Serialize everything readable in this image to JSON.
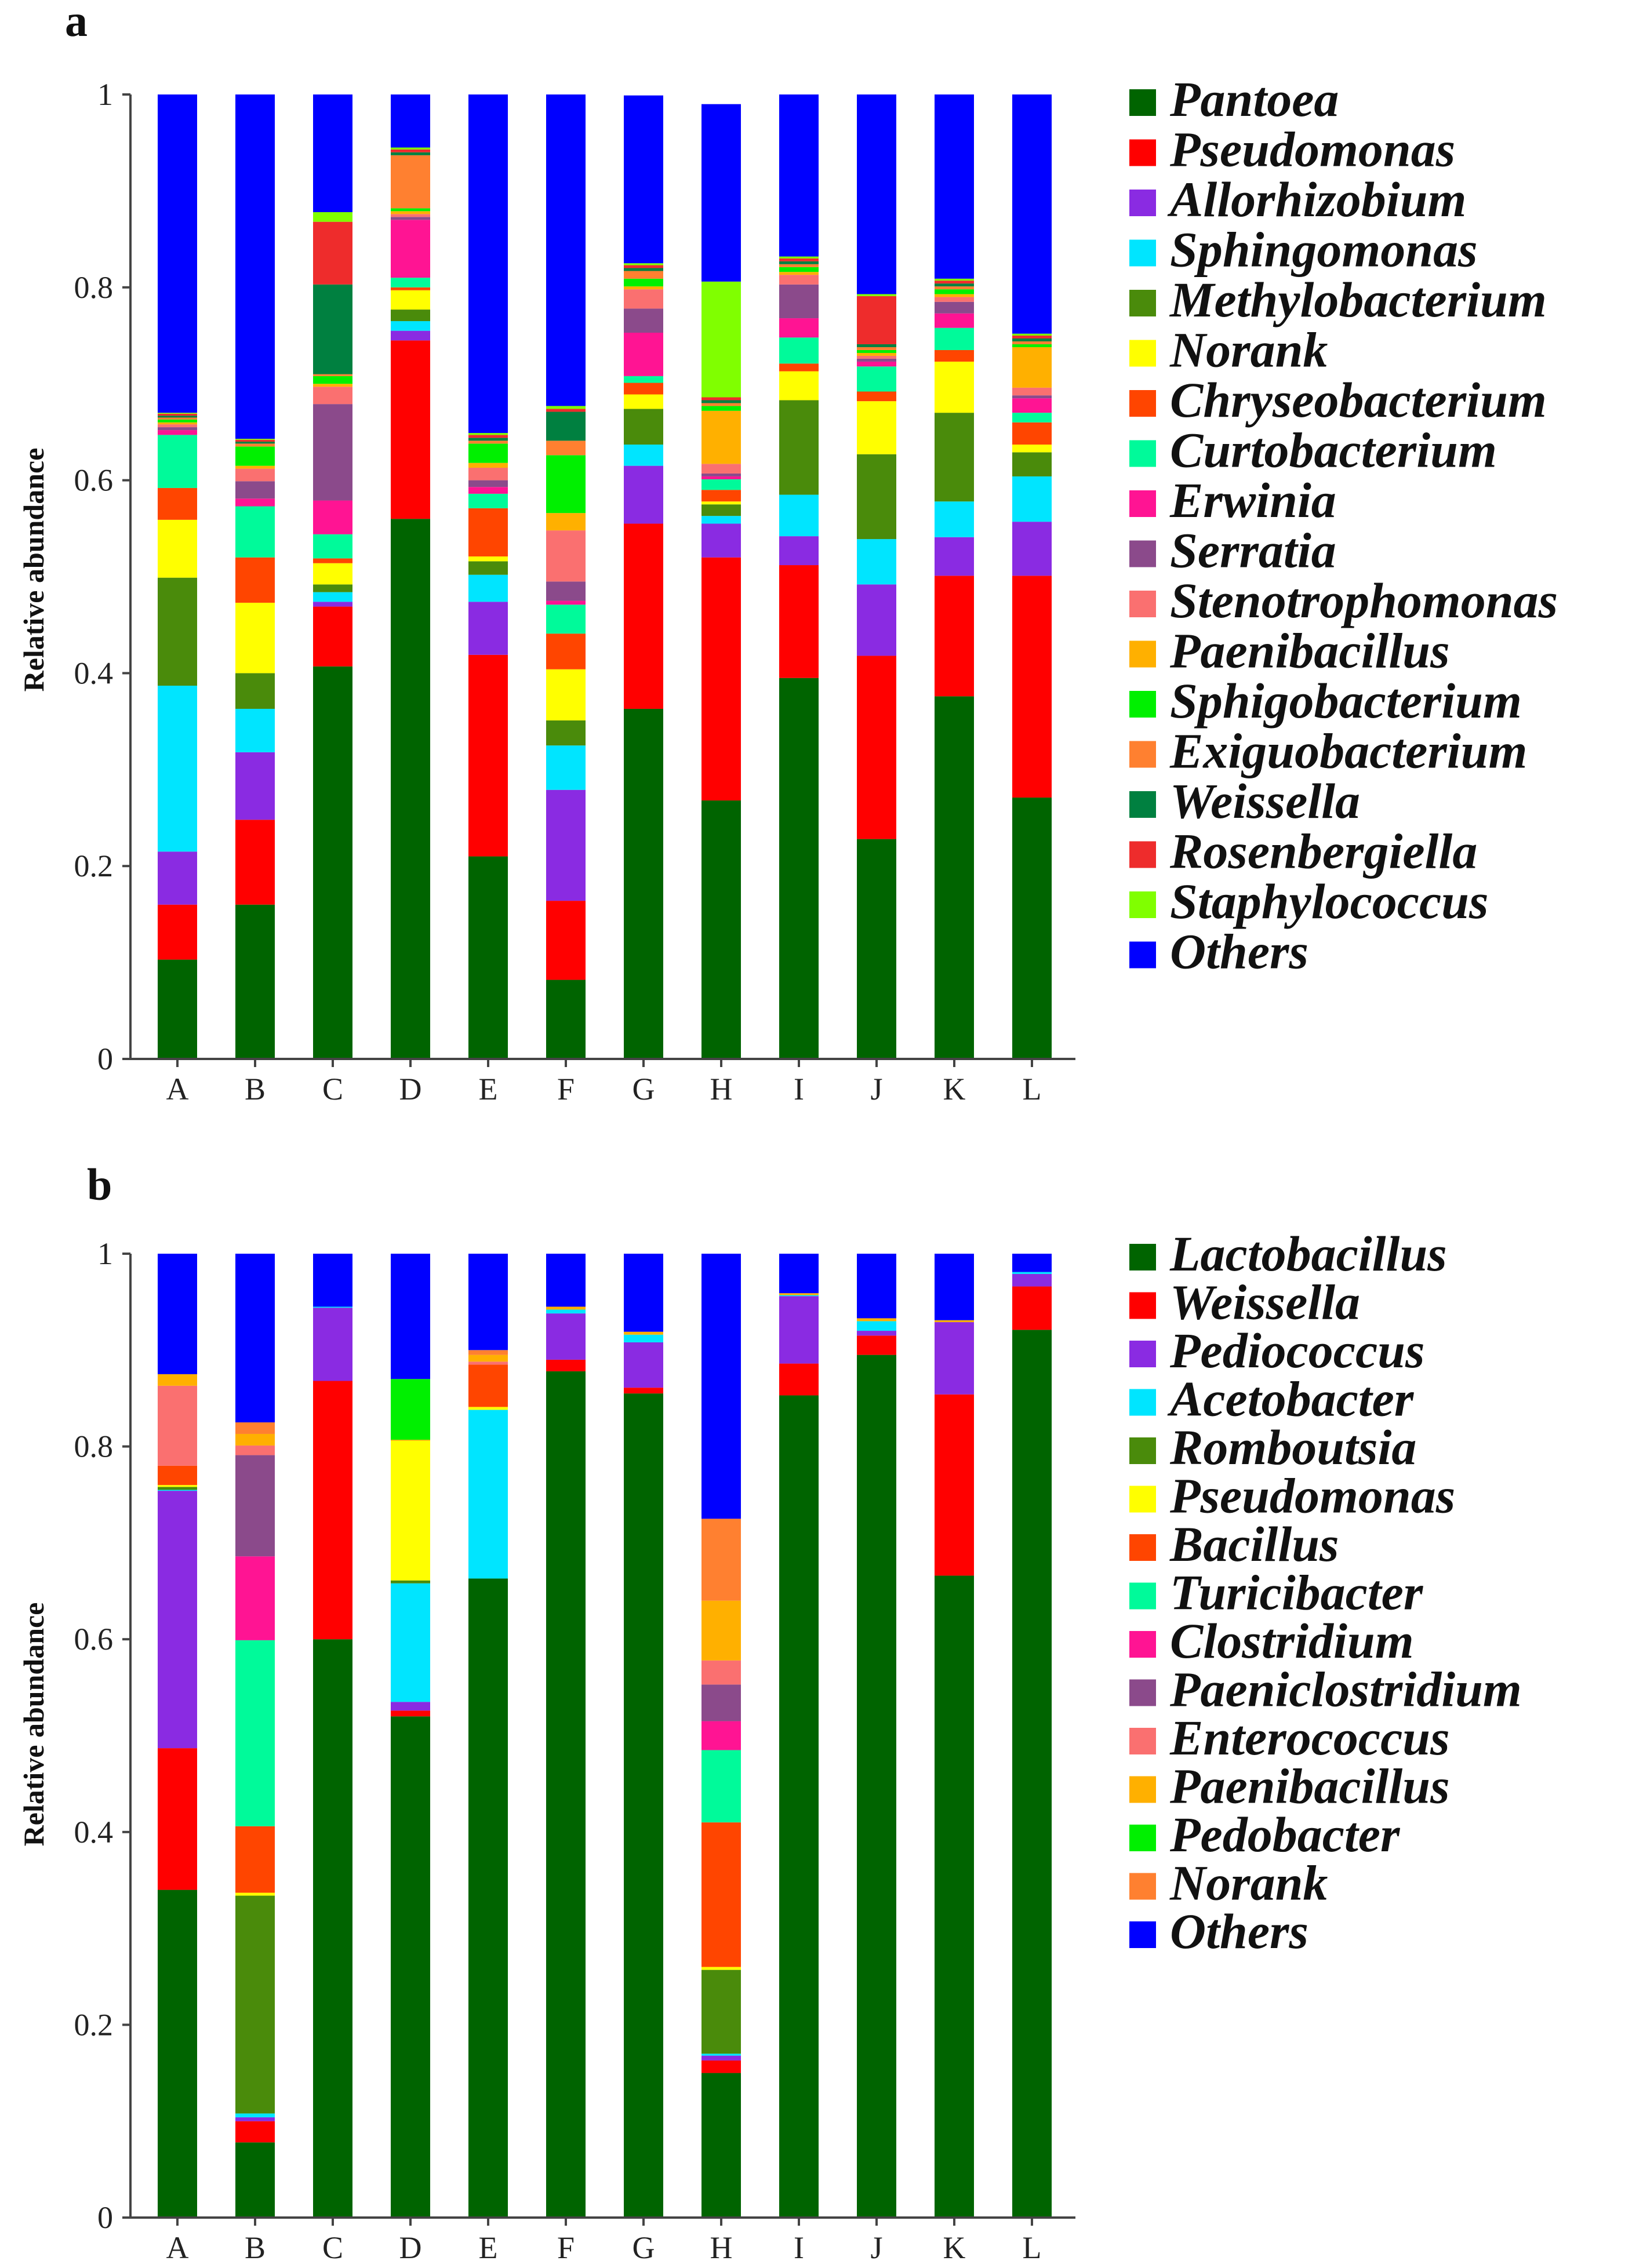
{
  "colors": {
    "Pantoea": "#006400",
    "Pseudomonas_a": "#FF0000",
    "Allorhizobium": "#8A2BE2",
    "Sphingomonas": "#00E5FF",
    "Methylobacterium": "#4A8B0B",
    "Norank_a": "#FFFF00",
    "Chryseobacterium": "#FF4500",
    "Curtobacterium": "#00FA9A",
    "Erwinia": "#FF1493",
    "Serratia": "#8B4A8B",
    "Stenotrophomonas": "#FA7070",
    "Paenibacillus_a": "#FFB000",
    "Sphigobacterium": "#00F000",
    "Exiguobacterium": "#FF8030",
    "Weissella_a": "#008040",
    "Rosenbergiella": "#EE2C2C",
    "Staphylococcus": "#80FF00",
    "Others": "#0000FF"
  },
  "chart_data": [
    {
      "panel": "a",
      "type": "bar",
      "stacked": true,
      "ylabel": "Relative abundance",
      "xlabel": "",
      "ylim": [
        0,
        1
      ],
      "yticks": [
        "0",
        "0.2",
        "0.4",
        "0.6",
        "0.8",
        "1"
      ],
      "categories": [
        "A",
        "B",
        "C",
        "D",
        "E",
        "F",
        "G",
        "H",
        "I",
        "J",
        "K",
        "L"
      ],
      "series": [
        {
          "name": "Pantoea",
          "color": "#006400",
          "values": [
            0.103,
            0.16,
            0.407,
            0.56,
            0.21,
            0.082,
            0.363,
            0.268,
            0.395,
            0.228,
            0.376,
            0.271
          ]
        },
        {
          "name": "Pseudomonas",
          "color": "#FF0000",
          "values": [
            0.057,
            0.088,
            0.062,
            0.185,
            0.209,
            0.082,
            0.192,
            0.252,
            0.117,
            0.19,
            0.125,
            0.23
          ]
        },
        {
          "name": "Allorhizobium",
          "color": "#8A2BE2",
          "values": [
            0.055,
            0.07,
            0.005,
            0.01,
            0.055,
            0.115,
            0.06,
            0.035,
            0.03,
            0.074,
            0.04,
            0.056
          ]
        },
        {
          "name": "Sphingomonas",
          "color": "#00E5FF",
          "values": [
            0.172,
            0.045,
            0.01,
            0.01,
            0.028,
            0.046,
            0.022,
            0.008,
            0.043,
            0.047,
            0.037,
            0.047
          ]
        },
        {
          "name": "Methylobacterium",
          "color": "#4A8B0B",
          "values": [
            0.112,
            0.037,
            0.008,
            0.012,
            0.014,
            0.026,
            0.037,
            0.012,
            0.098,
            0.088,
            0.092,
            0.025
          ]
        },
        {
          "name": "Norank",
          "color": "#FFFF00",
          "values": [
            0.06,
            0.073,
            0.022,
            0.02,
            0.005,
            0.053,
            0.015,
            0.003,
            0.03,
            0.055,
            0.053,
            0.008
          ]
        },
        {
          "name": "Chryseobacterium",
          "color": "#FF4500",
          "values": [
            0.033,
            0.047,
            0.005,
            0.003,
            0.05,
            0.037,
            0.012,
            0.012,
            0.008,
            0.01,
            0.012,
            0.023
          ]
        },
        {
          "name": "Curtobacterium",
          "color": "#00FA9A",
          "values": [
            0.055,
            0.053,
            0.025,
            0.01,
            0.015,
            0.03,
            0.007,
            0.011,
            0.027,
            0.026,
            0.023,
            0.01
          ]
        },
        {
          "name": "Erwinia",
          "color": "#FF1493",
          "values": [
            0.005,
            0.008,
            0.035,
            0.06,
            0.007,
            0.004,
            0.045,
            0.003,
            0.02,
            0.005,
            0.015,
            0.015
          ]
        },
        {
          "name": "Serratia",
          "color": "#8B4A8B",
          "values": [
            0.003,
            0.018,
            0.1,
            0.003,
            0.007,
            0.02,
            0.025,
            0.003,
            0.035,
            0.003,
            0.012,
            0.003
          ]
        },
        {
          "name": "Stenotrophomonas",
          "color": "#FA7070",
          "values": [
            0.003,
            0.013,
            0.018,
            0.003,
            0.013,
            0.053,
            0.02,
            0.01,
            0.01,
            0.003,
            0.005,
            0.008
          ]
        },
        {
          "name": "Paenibacillus",
          "color": "#FFB000",
          "values": [
            0.002,
            0.003,
            0.003,
            0.003,
            0.005,
            0.018,
            0.003,
            0.055,
            0.003,
            0.003,
            0.003,
            0.042
          ]
        },
        {
          "name": "Sphigobacterium",
          "color": "#00F000",
          "values": [
            0.003,
            0.02,
            0.008,
            0.003,
            0.02,
            0.06,
            0.008,
            0.005,
            0.005,
            0.003,
            0.005,
            0.003
          ]
        },
        {
          "name": "Exiguobacterium",
          "color": "#FF8030",
          "values": [
            0.002,
            0.003,
            0.002,
            0.055,
            0.003,
            0.015,
            0.008,
            0.003,
            0.003,
            0.003,
            0.003,
            0.003
          ]
        },
        {
          "name": "Weissella",
          "color": "#008040",
          "values": [
            0.002,
            0.002,
            0.093,
            0.003,
            0.003,
            0.03,
            0.003,
            0.003,
            0.003,
            0.003,
            0.003,
            0.003
          ]
        },
        {
          "name": "Rosenbergiella",
          "color": "#EE2C2C",
          "values": [
            0.002,
            0.002,
            0.065,
            0.003,
            0.003,
            0.003,
            0.003,
            0.003,
            0.003,
            0.05,
            0.003,
            0.003
          ]
        },
        {
          "name": "Staphylococcus",
          "color": "#80FF00",
          "values": [
            0.001,
            0.001,
            0.01,
            0.002,
            0.002,
            0.003,
            0.002,
            0.12,
            0.002,
            0.002,
            0.002,
            0.002
          ]
        },
        {
          "name": "Others",
          "color": "#0000FF",
          "values": [
            0.334,
            0.357,
            0.122,
            0.055,
            0.351,
            0.323,
            0.174,
            0.184,
            0.168,
            0.207,
            0.191,
            0.248
          ]
        }
      ]
    },
    {
      "panel": "b",
      "type": "bar",
      "stacked": true,
      "ylabel": "Relative abundance",
      "xlabel": "",
      "ylim": [
        0,
        1
      ],
      "yticks": [
        "0",
        "0.2",
        "0.4",
        "0.6",
        "0.8",
        "1"
      ],
      "categories": [
        "A",
        "B",
        "C",
        "D",
        "E",
        "F",
        "G",
        "H",
        "I",
        "J",
        "K",
        "L"
      ],
      "series": [
        {
          "name": "Lactobacillus",
          "color": "#006400",
          "values": [
            0.34,
            0.078,
            0.6,
            0.52,
            0.663,
            0.878,
            0.855,
            0.15,
            0.853,
            0.895,
            0.666,
            0.921
          ]
        },
        {
          "name": "Weissella",
          "color": "#FF0000",
          "values": [
            0.147,
            0.022,
            0.268,
            0.006,
            0.0,
            0.012,
            0.006,
            0.013,
            0.033,
            0.02,
            0.188,
            0.045
          ]
        },
        {
          "name": "Pediococcus",
          "color": "#8A2BE2",
          "values": [
            0.267,
            0.004,
            0.076,
            0.009,
            0.0,
            0.048,
            0.047,
            0.005,
            0.07,
            0.005,
            0.075,
            0.013
          ]
        },
        {
          "name": "Acetobacter",
          "color": "#00E5FF",
          "values": [
            0.001,
            0.004,
            0.001,
            0.123,
            0.175,
            0.004,
            0.008,
            0.002,
            0.001,
            0.01,
            0.0,
            0.002
          ]
        },
        {
          "name": "Romboutsia",
          "color": "#4A8B0B",
          "values": [
            0.003,
            0.226,
            0.0,
            0.003,
            0.0,
            0.0,
            0.0,
            0.087,
            0.0,
            0.0,
            0.0,
            0.0
          ]
        },
        {
          "name": "Pseudomonas",
          "color": "#FFFF00",
          "values": [
            0.002,
            0.003,
            0.0,
            0.145,
            0.003,
            0.0,
            0.0,
            0.003,
            0.0,
            0.0,
            0.0,
            0.0
          ]
        },
        {
          "name": "Bacillus",
          "color": "#FF4500",
          "values": [
            0.02,
            0.069,
            0.0,
            0.0,
            0.044,
            0.0,
            0.0,
            0.15,
            0.0,
            0.0,
            0.0,
            0.0
          ]
        },
        {
          "name": "Turicibacter",
          "color": "#00FA9A",
          "values": [
            0.0,
            0.193,
            0.0,
            0.0,
            0.0,
            0.0,
            0.0,
            0.075,
            0.0,
            0.0,
            0.0,
            0.0
          ]
        },
        {
          "name": "Clostridium",
          "color": "#FF1493",
          "values": [
            0.0,
            0.087,
            0.0,
            0.0,
            0.0,
            0.0,
            0.0,
            0.03,
            0.0,
            0.0,
            0.0,
            0.0
          ]
        },
        {
          "name": "Paeniclostridium",
          "color": "#8B4A8B",
          "values": [
            0.0,
            0.105,
            0.0,
            0.0,
            0.0,
            0.0,
            0.0,
            0.038,
            0.0,
            0.0,
            0.0,
            0.0
          ]
        },
        {
          "name": "Enterococcus",
          "color": "#FA7070",
          "values": [
            0.083,
            0.01,
            0.0,
            0.0,
            0.003,
            0.0,
            0.0,
            0.025,
            0.0,
            0.0,
            0.0,
            0.0
          ]
        },
        {
          "name": "Paenibacillus",
          "color": "#FFB000",
          "values": [
            0.012,
            0.012,
            0.0,
            0.001,
            0.007,
            0.003,
            0.003,
            0.062,
            0.002,
            0.003,
            0.002,
            0.0
          ]
        },
        {
          "name": "Pedobacter",
          "color": "#00F000",
          "values": [
            0.0,
            0.0,
            0.0,
            0.063,
            0.0,
            0.0,
            0.0,
            0.0,
            0.0,
            0.0,
            0.0,
            0.0
          ]
        },
        {
          "name": "Norank",
          "color": "#FF8030",
          "values": [
            0.0,
            0.012,
            0.0,
            0.0,
            0.005,
            0.0,
            0.0,
            0.085,
            0.0,
            0.0,
            0.0,
            0.0
          ]
        },
        {
          "name": "Others",
          "color": "#0000FF",
          "values": [
            0.125,
            0.175,
            0.055,
            0.13,
            0.1,
            0.055,
            0.081,
            0.275,
            0.041,
            0.067,
            0.069,
            0.019
          ]
        }
      ]
    }
  ],
  "panel_labels": {
    "a": "a",
    "b": "b"
  },
  "legend_a": [
    {
      "label": "Pantoea",
      "color": "#006400"
    },
    {
      "label": "Pseudomonas",
      "color": "#FF0000"
    },
    {
      "label": "Allorhizobium",
      "color": "#8A2BE2"
    },
    {
      "label": "Sphingomonas",
      "color": "#00E5FF"
    },
    {
      "label": "Methylobacterium",
      "color": "#4A8B0B"
    },
    {
      "label": "Norank",
      "color": "#FFFF00"
    },
    {
      "label": "Chryseobacterium",
      "color": "#FF4500"
    },
    {
      "label": "Curtobacterium",
      "color": "#00FA9A"
    },
    {
      "label": "Erwinia",
      "color": "#FF1493"
    },
    {
      "label": "Serratia",
      "color": "#8B4A8B"
    },
    {
      "label": "Stenotrophomonas",
      "color": "#FA7070"
    },
    {
      "label": "Paenibacillus",
      "color": "#FFB000"
    },
    {
      "label": "Sphigobacterium",
      "color": "#00F000"
    },
    {
      "label": "Exiguobacterium",
      "color": "#FF8030"
    },
    {
      "label": "Weissella",
      "color": "#008040"
    },
    {
      "label": "Rosenbergiella",
      "color": "#EE2C2C"
    },
    {
      "label": "Staphylococcus",
      "color": "#80FF00"
    },
    {
      "label": "Others",
      "color": "#0000FF"
    }
  ],
  "legend_b": [
    {
      "label": "Lactobacillus",
      "color": "#006400"
    },
    {
      "label": "Weissella",
      "color": "#FF0000"
    },
    {
      "label": "Pediococcus",
      "color": "#8A2BE2"
    },
    {
      "label": "Acetobacter",
      "color": "#00E5FF"
    },
    {
      "label": "Romboutsia",
      "color": "#4A8B0B"
    },
    {
      "label": "Pseudomonas",
      "color": "#FFFF00"
    },
    {
      "label": "Bacillus",
      "color": "#FF4500"
    },
    {
      "label": "Turicibacter",
      "color": "#00FA9A"
    },
    {
      "label": "Clostridium",
      "color": "#FF1493"
    },
    {
      "label": "Paeniclostridium",
      "color": "#8B4A8B"
    },
    {
      "label": "Enterococcus",
      "color": "#FA7070"
    },
    {
      "label": "Paenibacillus",
      "color": "#FFB000"
    },
    {
      "label": "Pedobacter",
      "color": "#00F000"
    },
    {
      "label": "Norank",
      "color": "#FF8030"
    },
    {
      "label": "Others",
      "color": "#0000FF"
    }
  ]
}
